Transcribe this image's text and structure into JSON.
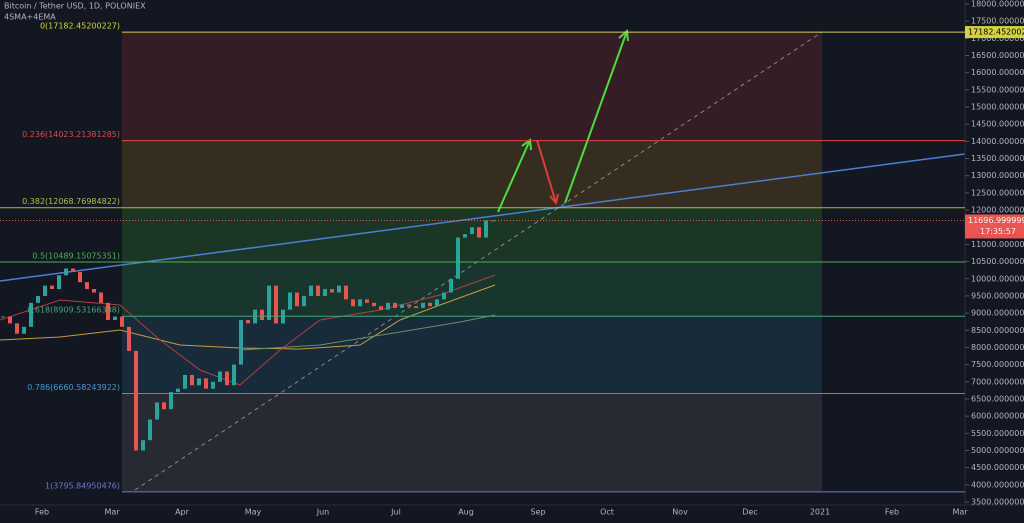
{
  "header": {
    "title": "Bitcoin / Tether USD, 1D, POLONIEX",
    "indicators": "4SMA+4EMA"
  },
  "price_axis": {
    "ylim": [
      3500,
      18000
    ],
    "ticks": [
      {
        "value": 3500,
        "label": "3500.00000000"
      },
      {
        "value": 4000,
        "label": "4000.00000000"
      },
      {
        "value": 4500,
        "label": "4500.00000000"
      },
      {
        "value": 5000,
        "label": "5000.00000000"
      },
      {
        "value": 5500,
        "label": "5500.00000000"
      },
      {
        "value": 6000,
        "label": "6000.00000000"
      },
      {
        "value": 6500,
        "label": "6500.00000000"
      },
      {
        "value": 7000,
        "label": "7000.00000000"
      },
      {
        "value": 7500,
        "label": "7500.00000000"
      },
      {
        "value": 8000,
        "label": "8000.00000000"
      },
      {
        "value": 8500,
        "label": "8500.00000000"
      },
      {
        "value": 9000,
        "label": "9000.00000000"
      },
      {
        "value": 9500,
        "label": "9500.00000000"
      },
      {
        "value": 10000,
        "label": "10000.00000000"
      },
      {
        "value": 10500,
        "label": "10500.00000000"
      },
      {
        "value": 11000,
        "label": "11000.00000000"
      },
      {
        "value": 11500,
        "label": "11500.00000000"
      },
      {
        "value": 12000,
        "label": "12000.00000000"
      },
      {
        "value": 12500,
        "label": "12500.00000000"
      },
      {
        "value": 13000,
        "label": "13000.00000000"
      },
      {
        "value": 13500,
        "label": "13500.00000000"
      },
      {
        "value": 14000,
        "label": "14000.00000000"
      },
      {
        "value": 14500,
        "label": "14500.00000000"
      },
      {
        "value": 15000,
        "label": "15000.00000000"
      },
      {
        "value": 15500,
        "label": "15500.00000000"
      },
      {
        "value": 16000,
        "label": "16000.00000000"
      },
      {
        "value": 16500,
        "label": "16500.00000000"
      },
      {
        "value": 17000,
        "label": "17000.00000000"
      },
      {
        "value": 17500,
        "label": "17500.00000000"
      },
      {
        "value": 18000,
        "label": "18000.00000000"
      }
    ]
  },
  "time_axis": {
    "labels": [
      "Feb",
      "Mar",
      "Apr",
      "May",
      "Jun",
      "Jul",
      "Aug",
      "Sep",
      "Oct",
      "Nov",
      "Dec",
      "2021",
      "Feb",
      "Mar"
    ]
  },
  "fib_levels": [
    {
      "label": "0(17182.45200227)",
      "price": 17182.45200227,
      "color": "#d4d438",
      "axis_tag": "17182.45200227"
    },
    {
      "label": "0.236(14023.21381285)",
      "price": 14023.21381285,
      "color": "#e04848"
    },
    {
      "label": "0.382(12068.76984822)",
      "price": 12068.76984822,
      "color": "#a8c43a"
    },
    {
      "label": "0.5(10489.15075351)",
      "price": 10489.15075351,
      "color": "#4caf50"
    },
    {
      "label": "0.618(8909.53166388)",
      "price": 8909.53166388,
      "color": "#3fa87a"
    },
    {
      "label": "0.786(6660.58243922)",
      "price": 6660.58243922,
      "color": "#3a9ad0"
    },
    {
      "label": "1(3795.84950476)",
      "price": 3795.84950476,
      "color": "#6f78c8"
    }
  ],
  "last_price": {
    "value": 11696.99999999,
    "countdown": "17:35:57"
  },
  "candles": {
    "up_color": "#26a69a",
    "down_color": "#ef5350",
    "closes": [
      8900,
      8700,
      8400,
      8600,
      9300,
      9500,
      9800,
      9700,
      10100,
      10300,
      10200,
      9900,
      9700,
      9600,
      9300,
      8800,
      8900,
      8600,
      7900,
      5000,
      5300,
      5900,
      6400,
      6200,
      6700,
      6800,
      7200,
      6900,
      7100,
      6800,
      7000,
      7300,
      6900,
      7500,
      8800,
      8700,
      9100,
      8800,
      9800,
      8700,
      9100,
      9600,
      9200,
      9500,
      9800,
      9500,
      9700,
      9600,
      9800,
      9400,
      9200,
      9400,
      9300,
      9200,
      9100,
      9300,
      9150,
      9250,
      9200,
      9150,
      9300,
      9200,
      9400,
      9600,
      10000,
      11200,
      11300,
      11500,
      11200,
      11700,
      11700
    ]
  }
}
